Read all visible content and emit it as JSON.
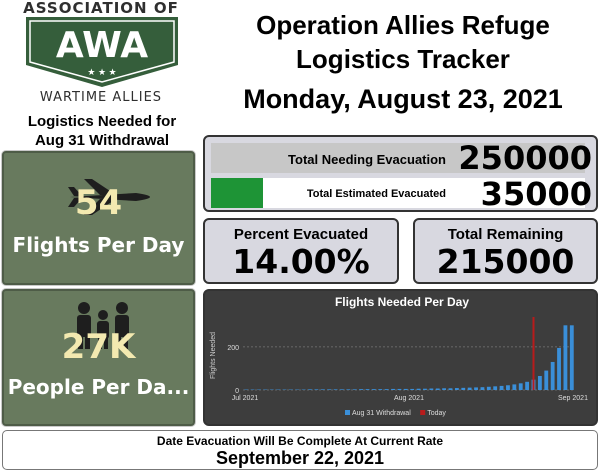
{
  "logo": {
    "top_text": "ASSOCIATION OF",
    "badge_text": "AWA",
    "bottom_text": "WARTIME ALLIES",
    "badge_color": "#355e3b"
  },
  "header": {
    "title_line1": "Operation Allies Refuge",
    "title_line2": "Logistics Tracker",
    "date": "Monday, August 23, 2021"
  },
  "needed": {
    "title_line1": "Logistics Needed for",
    "title_line2": "Aug 31 Withdrawal"
  },
  "flights_card": {
    "icon": "airplane-icon",
    "value": "54",
    "label": "Flights Per Day"
  },
  "people_card": {
    "icon": "people-icon",
    "value": "27K",
    "label": "People Per Da..."
  },
  "evacuation": {
    "needed_label": "Total Needing Evacuation",
    "needed_value": "250000",
    "evacuated_label": "Total Estimated Evacuated",
    "evacuated_value": "35000",
    "evacuated_fraction": 0.14,
    "fill_color": "#1e9436"
  },
  "percent": {
    "title": "Percent Evacuated",
    "value": "14.00%"
  },
  "remaining": {
    "title": "Total Remaining",
    "value": "215000"
  },
  "chart_data": {
    "type": "bar",
    "title": "Flights Needed Per Day",
    "xlabel": "",
    "ylabel": "Flights Needed",
    "ylim": [
      0,
      320
    ],
    "yticks": [
      0,
      200
    ],
    "xticks": [
      "Jul 2021",
      "Aug 2021",
      "Sep 2021"
    ],
    "grid": true,
    "legend_position": "bottom",
    "series": [
      {
        "name": "Aug 31 Withdrawal",
        "color": "#3a8fd9",
        "values": [
          2,
          2,
          2,
          2,
          2,
          2,
          2,
          2,
          2,
          2,
          3,
          3,
          3,
          3,
          3,
          3,
          3,
          3,
          4,
          4,
          4,
          4,
          4,
          5,
          5,
          5,
          5,
          6,
          6,
          7,
          7,
          8,
          8,
          9,
          10,
          11,
          12,
          13,
          15,
          17,
          19,
          22,
          26,
          31,
          38,
          48,
          65,
          90,
          130,
          195,
          300,
          300
        ]
      },
      {
        "name": "Today",
        "color": "#b81b1b",
        "marker_index": 45
      }
    ]
  },
  "footer": {
    "caption": "Date Evacuation Will Be Complete At Current Rate",
    "date": "September 22, 2021"
  }
}
